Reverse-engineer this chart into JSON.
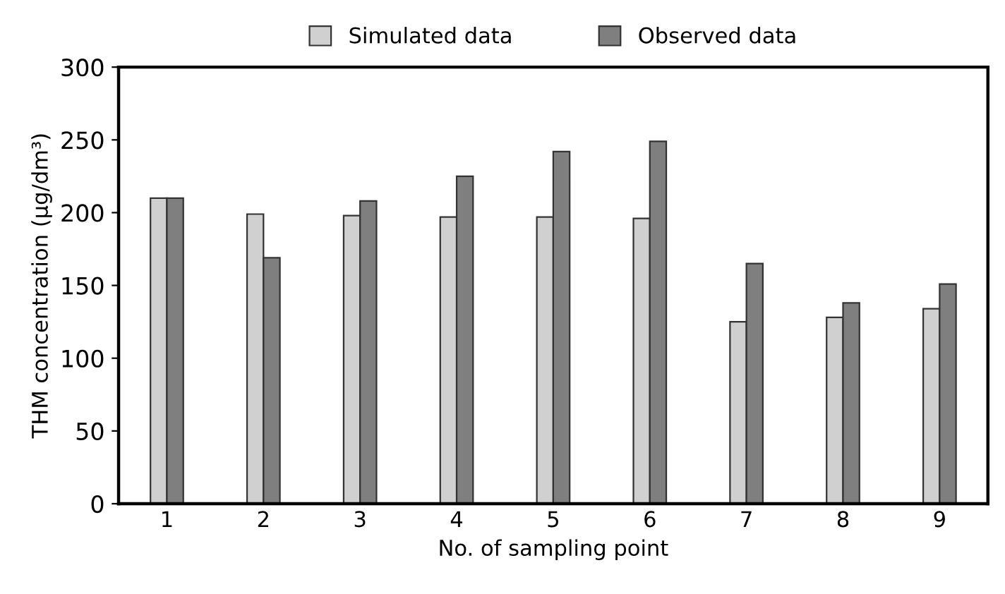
{
  "chart_data": {
    "type": "bar",
    "xlabel": "No. of sampling point",
    "ylabel": "THM concentration (µg/dm³)",
    "categories": [
      "1",
      "2",
      "3",
      "4",
      "5",
      "6",
      "7",
      "8",
      "9"
    ],
    "series": [
      {
        "name": "Simulated data",
        "color": "#d0d0d0",
        "values": [
          210,
          199,
          198,
          197,
          197,
          196,
          125,
          128,
          134
        ]
      },
      {
        "name": "Observed data",
        "color": "#7f7f7f",
        "values": [
          210,
          169,
          208,
          225,
          242,
          249,
          165,
          138,
          151
        ]
      }
    ],
    "ylim": [
      0,
      300
    ],
    "yticks": [
      0,
      50,
      100,
      150,
      200,
      250,
      300
    ],
    "grid": false,
    "legend": "top"
  }
}
